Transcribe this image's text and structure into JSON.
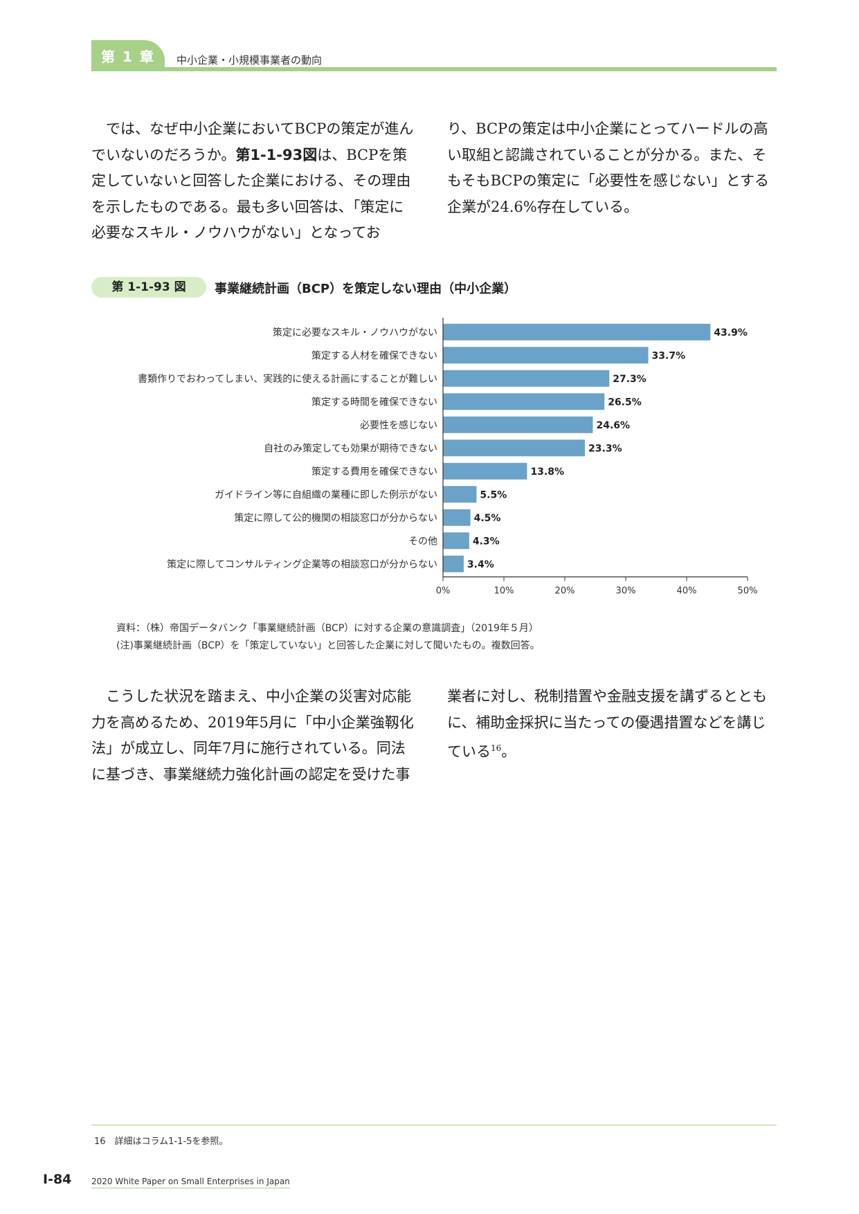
{
  "header": {
    "chapter_label": "第 1 章",
    "chapter_title": "中小企業・小規模事業者の動向"
  },
  "intro": {
    "left_a": "では、なぜ中小企業においてBCPの策定が進んでいないのだろうか。",
    "fig_ref": "第1-1-93図",
    "left_b": "は、BCPを策定していないと回答した企業における、その理由を示したものである。最も多い回答は、「策定に必要なスキル・ノウハウがない」となってお",
    "right": "り、BCPの策定は中小企業にとってハードルの高い取組と認識されていることが分かる。また、そもそもBCPの策定に「必要性を感じない」とする企業が24.6%存在している。"
  },
  "figure": {
    "badge": "第 1-1-93 図",
    "title": "事業継続計画（BCP）を策定しない理由（中小企業）"
  },
  "chart_data": {
    "type": "bar",
    "orientation": "horizontal",
    "categories": [
      "策定に必要なスキル・ノウハウがない",
      "策定する人材を確保できない",
      "書類作りでおわってしまい、実践的に使える計画にすることが難しい",
      "策定する時間を確保できない",
      "必要性を感じない",
      "自社のみ策定しても効果が期待できない",
      "策定する費用を確保できない",
      "ガイドライン等に自組織の業種に即した例示がない",
      "策定に際して公的機関の相談窓口が分からない",
      "その他",
      "策定に際してコンサルティング企業等の相談窓口が分からない"
    ],
    "values": [
      43.9,
      33.7,
      27.3,
      26.5,
      24.6,
      23.3,
      13.8,
      5.5,
      4.5,
      4.3,
      3.4
    ],
    "value_labels": [
      "43.9%",
      "33.7%",
      "27.3%",
      "26.5%",
      "24.6%",
      "23.3%",
      "13.8%",
      "5.5%",
      "4.5%",
      "4.3%",
      "3.4%"
    ],
    "x_ticks": [
      "0%",
      "10%",
      "20%",
      "30%",
      "40%",
      "50%"
    ],
    "xlim": [
      0,
      50
    ],
    "bar_color": "#6aa2c8",
    "grid": false,
    "legend": "none"
  },
  "notes": {
    "source": "資料：（株）帝国データバンク「事業継続計画（BCP）に対する企業の意識調査」（2019年５月）",
    "note": "(注)事業継続計画（BCP）を「策定していない」と回答した企業に対して聞いたもの。複数回答。"
  },
  "closing": {
    "left": "こうした状況を踏まえ、中小企業の災害対応能力を高めるため、2019年5月に「中小企業強靱化法」が成立し、同年7月に施行されている。同法に基づき、事業継続力強化計画の認定を受けた事",
    "right": "業者に対し、税制措置や金融支援を講ずるとともに、補助金採択に当たっての優遇措置などを講じている",
    "footnote_ref": "16",
    "right_end": "。"
  },
  "footnote": "16　詳細はコラム1-1-5を参照。",
  "footer": {
    "page": "Ⅰ-84",
    "publication": "2020 White Paper on Small Enterprises in Japan"
  }
}
